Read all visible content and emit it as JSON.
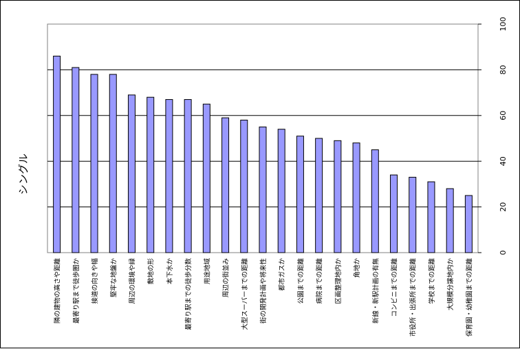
{
  "chart_data": {
    "type": "bar",
    "ylabel": "シングル",
    "ylim": [
      0,
      100
    ],
    "yticks": [
      0,
      20,
      40,
      60,
      80,
      100
    ],
    "y_axis_side": "right",
    "grid": true,
    "bar_color": "#9999ff",
    "categories": [
      "隣の建物の高さや距離",
      "最寄り駅まで徒歩圏か",
      "接道の向きや幅",
      "堅牢な地盤か",
      "周辺の環境や緑",
      "敷地の形",
      "本下水か",
      "最寄り駅までの徒歩分数",
      "用途地域",
      "周辺の街並み",
      "大型スーパーまでの距離",
      "街の開発計画や将来性",
      "都市ガスか",
      "公園までの距離",
      "病院までの距離",
      "区画整理地内か",
      "角地か",
      "新線・新駅計画の有無",
      "コンビニまでの距離",
      "市役所・出張所までの距離",
      "学校までの距離",
      "大規模分譲地内か",
      "保育園・幼稚園までの距離"
    ],
    "values": [
      86,
      81,
      78,
      78,
      69,
      68,
      67,
      67,
      65,
      59,
      58,
      55,
      54,
      51,
      50,
      49,
      48,
      45,
      34,
      33,
      31,
      28,
      25
    ]
  }
}
